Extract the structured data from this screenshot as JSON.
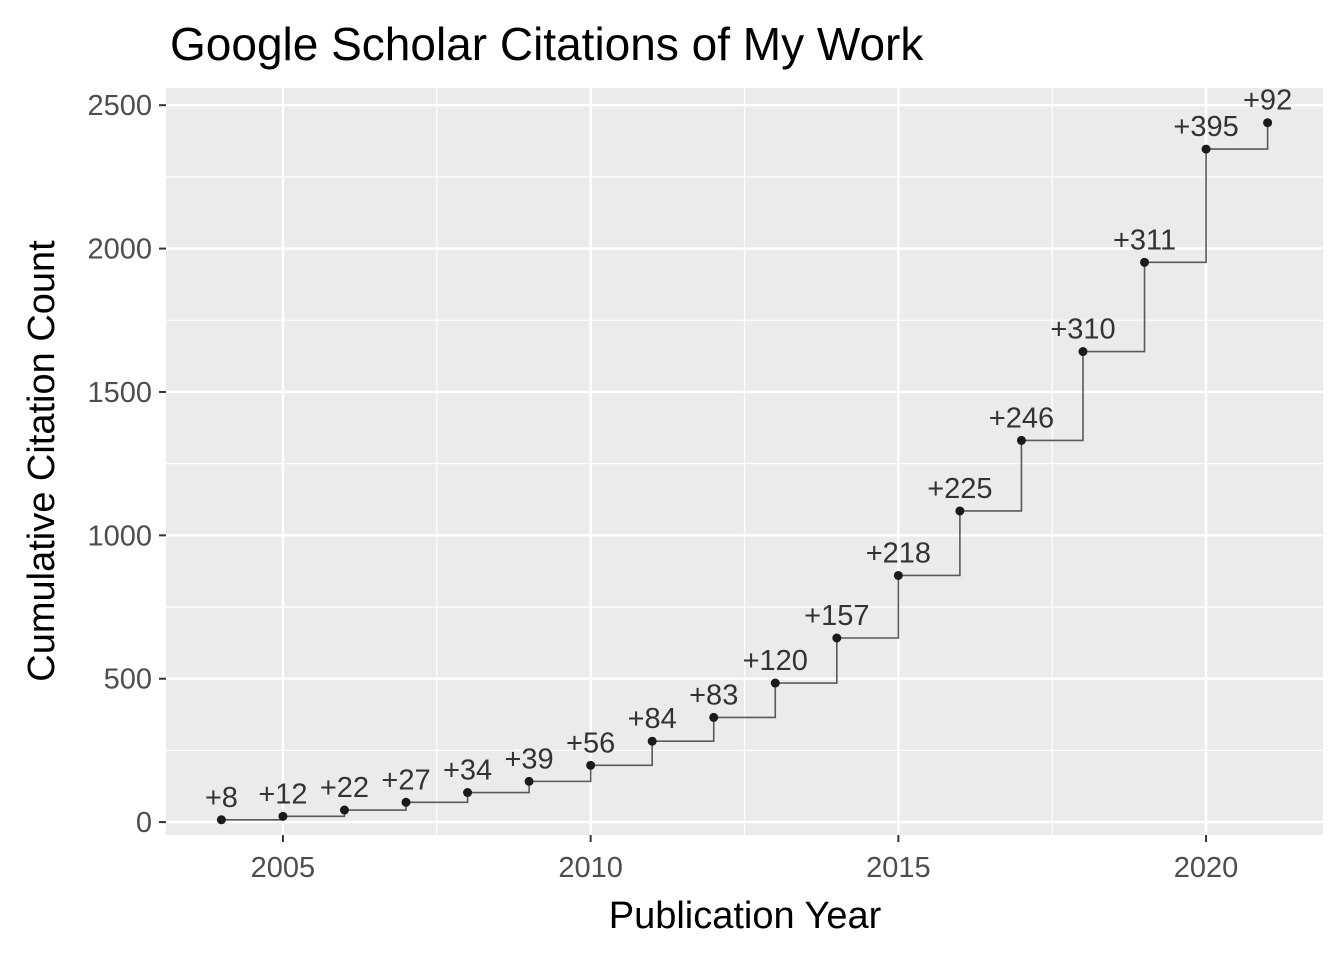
{
  "chart_data": {
    "type": "line",
    "title": "Google Scholar Citations of My Work",
    "xlabel": "Publication Year",
    "ylabel": "Cumulative Citation Count",
    "xlim": [
      2003.1,
      2021.9
    ],
    "ylim": [
      -45,
      2560
    ],
    "x_ticks": [
      2005,
      2010,
      2015,
      2020
    ],
    "y_ticks": [
      0,
      500,
      1000,
      1500,
      2000,
      2500
    ],
    "grid": true,
    "background": "#ebebeb",
    "grid_color": "#ffffff",
    "point_color": "#1a1a1a",
    "step_color": "#595959",
    "points": [
      {
        "year": 2004,
        "cumulative": 8,
        "label": "+8"
      },
      {
        "year": 2005,
        "cumulative": 20,
        "label": "+12"
      },
      {
        "year": 2006,
        "cumulative": 42,
        "label": "+22"
      },
      {
        "year": 2007,
        "cumulative": 69,
        "label": "+27"
      },
      {
        "year": 2008,
        "cumulative": 103,
        "label": "+34"
      },
      {
        "year": 2009,
        "cumulative": 142,
        "label": "+39"
      },
      {
        "year": 2010,
        "cumulative": 198,
        "label": "+56"
      },
      {
        "year": 2011,
        "cumulative": 282,
        "label": "+84"
      },
      {
        "year": 2012,
        "cumulative": 365,
        "label": "+83"
      },
      {
        "year": 2013,
        "cumulative": 485,
        "label": "+120"
      },
      {
        "year": 2014,
        "cumulative": 642,
        "label": "+157"
      },
      {
        "year": 2015,
        "cumulative": 860,
        "label": "+218"
      },
      {
        "year": 2016,
        "cumulative": 1085,
        "label": "+225"
      },
      {
        "year": 2017,
        "cumulative": 1331,
        "label": "+246"
      },
      {
        "year": 2018,
        "cumulative": 1641,
        "label": "+310"
      },
      {
        "year": 2019,
        "cumulative": 1952,
        "label": "+311"
      },
      {
        "year": 2020,
        "cumulative": 2347,
        "label": "+395"
      },
      {
        "year": 2021,
        "cumulative": 2439,
        "label": "+92"
      }
    ]
  }
}
